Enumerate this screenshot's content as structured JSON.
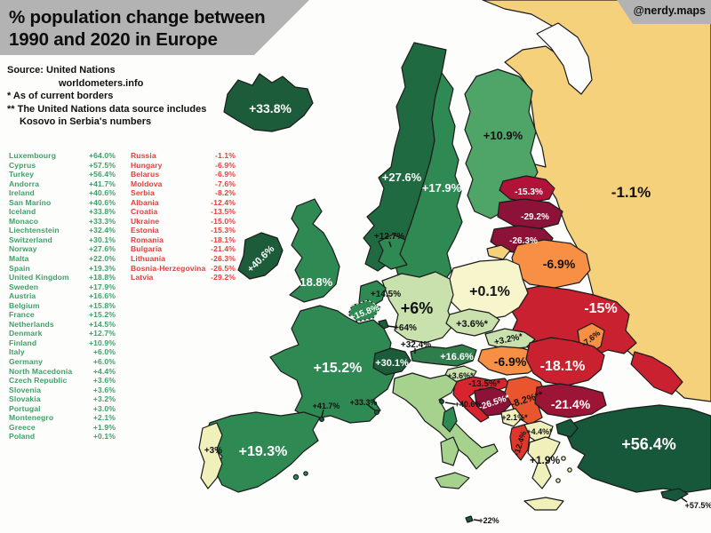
{
  "header": {
    "title_line1": "% population change between",
    "title_line2": "1990 and 2020 in Europe",
    "credit": "@nerdy.maps"
  },
  "source": {
    "row1_label": "Source:",
    "row1_value": "United Nations",
    "row2": "worldometers.info",
    "note1": "* As of current borders",
    "note2": "** The United Nations data source includes",
    "note3": "Kosovo in Serbia's numbers"
  },
  "list": {
    "gain_color": "#3fa06a",
    "loss_color": "#e14040",
    "gains": [
      {
        "name": "Luxembourg",
        "value": "+64.0%"
      },
      {
        "name": "Cyprus",
        "value": "+57.5%"
      },
      {
        "name": "Turkey",
        "value": "+56.4%"
      },
      {
        "name": "Andorra",
        "value": "+41.7%"
      },
      {
        "name": "Ireland",
        "value": "+40.6%"
      },
      {
        "name": "San Marino",
        "value": "+40.6%"
      },
      {
        "name": "Iceland",
        "value": "+33.8%"
      },
      {
        "name": "Monaco",
        "value": "+33.3%"
      },
      {
        "name": "Liechtenstein",
        "value": "+32.4%"
      },
      {
        "name": "Switzerland",
        "value": "+30.1%"
      },
      {
        "name": "Norway",
        "value": "+27.6%"
      },
      {
        "name": "Malta",
        "value": "+22.0%"
      },
      {
        "name": "Spain",
        "value": "+19.3%"
      },
      {
        "name": "United Kingdom",
        "value": "+18.8%"
      },
      {
        "name": "Sweden",
        "value": "+17.9%"
      },
      {
        "name": "Austria",
        "value": "+16.6%"
      },
      {
        "name": "Belgium",
        "value": "+15.8%"
      },
      {
        "name": "France",
        "value": "+15.2%"
      },
      {
        "name": "Netherlands",
        "value": "+14.5%"
      },
      {
        "name": "Denmark",
        "value": "+12.7%"
      },
      {
        "name": "Finland",
        "value": "+10.9%"
      },
      {
        "name": "Italy",
        "value": "+6.0%"
      },
      {
        "name": "Germany",
        "value": "+6.0%"
      },
      {
        "name": "North Macedonia",
        "value": "+4.4%"
      },
      {
        "name": "Czech Republic",
        "value": "+3.6%"
      },
      {
        "name": "Slovenia",
        "value": "+3.6%"
      },
      {
        "name": "Slovakia",
        "value": "+3.2%"
      },
      {
        "name": "Portugal",
        "value": "+3.0%"
      },
      {
        "name": "Montenegro",
        "value": "+2.1%"
      },
      {
        "name": "Greece",
        "value": "+1.9%"
      },
      {
        "name": "Poland",
        "value": "+0.1%"
      }
    ],
    "losses": [
      {
        "name": "Russia",
        "value": "-1.1%"
      },
      {
        "name": "Hungary",
        "value": "-6.9%"
      },
      {
        "name": "Belarus",
        "value": "-6.9%"
      },
      {
        "name": "Moldova",
        "value": "-7.6%"
      },
      {
        "name": "Serbia",
        "value": "-8.2%"
      },
      {
        "name": "Albania",
        "value": "-12.4%"
      },
      {
        "name": "Croatia",
        "value": "-13.5%"
      },
      {
        "name": "Ukraine",
        "value": "-15.0%"
      },
      {
        "name": "Estonia",
        "value": "-15.3%"
      },
      {
        "name": "Romania",
        "value": "-18.1%"
      },
      {
        "name": "Bulgaria",
        "value": "-21.4%"
      },
      {
        "name": "Lithuania",
        "value": "-26.3%"
      },
      {
        "name": "Bosnia-Herzegovina",
        "value": "-26.5%"
      },
      {
        "name": "Latvia",
        "value": "-29.2%"
      }
    ]
  },
  "map": {
    "labels": {
      "iceland": "+33.8%",
      "norway": "+27.6%",
      "sweden": "+17.9%",
      "finland": "+10.9%",
      "denmark": "+12.7%",
      "estonia": "-15.3%",
      "latvia": "-29.2%",
      "lithuania": "-26.3%",
      "russia": "-1.1%",
      "belarus": "-6.9%",
      "ukraine": "-15%",
      "moldova": "-7.6%",
      "poland": "+0.1%",
      "germany": "+6%",
      "netherlands": "+14.5%",
      "belgium": "+15.8%",
      "luxembourg": "+64%",
      "france": "+15.2%",
      "switzerland": "+30.1%",
      "liechtenstein": "+32.4%",
      "austria": "+16.6%",
      "czech": "+3.6%*",
      "slovakia": "+3.2%*",
      "hungary": "-6.9%",
      "slovenia": "+3.6%*",
      "croatia": "-13.5%*",
      "bosnia": "-26.5%*",
      "serbia": "-8.2%**",
      "montenegro": "+2.1%*",
      "macedonia": "+4.4%*",
      "albania": "-12.4%",
      "romania": "-18.1%",
      "bulgaria": "-21.4%",
      "greece": "+1.9%",
      "turkey": "+56.4%",
      "cyprus": "+57.5%",
      "malta": "+22%",
      "spain": "+19.3%",
      "portugal": "+3%",
      "andorra": "+41.7%",
      "monaco": "+33.3%",
      "san_marino": "+40.6%",
      "ireland": "+40.6%",
      "uk": "+18.8%"
    }
  },
  "palette": {
    "banner_gray": "#b3b3b3",
    "sea": "#fdfdfb",
    "green_darkest": "#17573a",
    "green_dark": "#1d5c3a",
    "green_mid": "#2e8a52",
    "green_light": "#c9e2ad",
    "green_italy": "#a6d28e",
    "pale_yellow": "#f7f5cb",
    "russia_tan": "#f6d17c",
    "orange": "#f78f44",
    "red": "#c92130",
    "crimson": "#b01238",
    "maroon": "#8c1238",
    "bulgaria_maroon": "#9c1536"
  }
}
